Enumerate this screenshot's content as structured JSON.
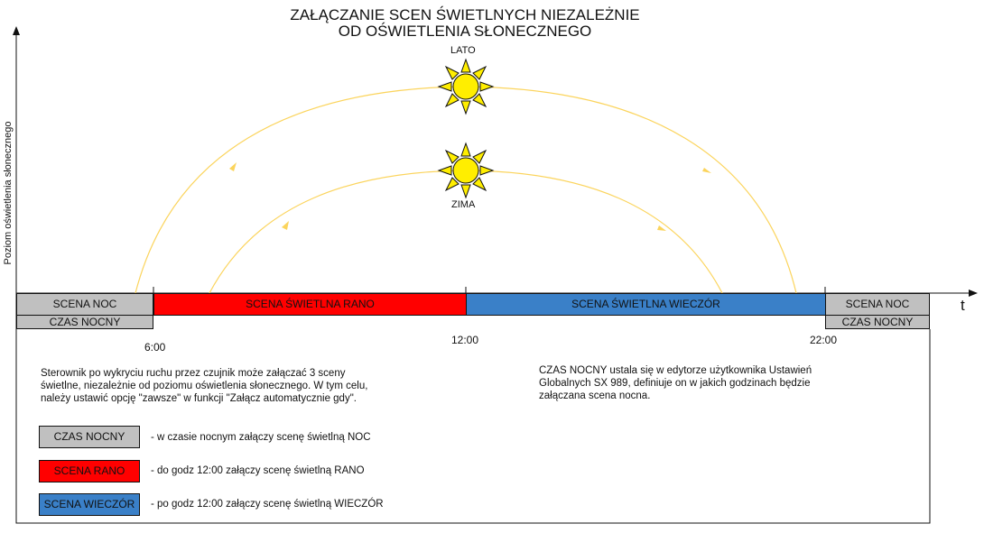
{
  "title": {
    "line1": "ZAŁĄCZANIE SCEN ŚWIETLNYCH NIEZALEŻNIE",
    "line2": "OD OŚWIETLENIA SŁONECZNEGO"
  },
  "axis": {
    "y_label": "Poziom oświetlenia słonecznego",
    "x_label": "t"
  },
  "suns": {
    "summer_label": "LATO",
    "winter_label": "ZIMA"
  },
  "times": [
    "6:00",
    "12:00",
    "22:00"
  ],
  "timeline": {
    "scene_night": "SCENA NOC",
    "night_time": "CZAS NOCNY",
    "scene_morning": "SCENA ŚWIETLNA RANO",
    "scene_evening": "SCENA ŚWIETLNA WIECZÓR"
  },
  "description_left": {
    "line1": "Sterownik po wykryciu ruchu przez czujnik może załączać 3 sceny",
    "line2": "świetlne, niezależnie od poziomu oświetlenia słonecznego. W tym celu,",
    "line3": "należy ustawić opcję \"zawsze\" w funkcji \"Załącz automatycznie gdy\"."
  },
  "description_right": {
    "line1": "CZAS NOCNY ustala się w edytorze użytkownika Ustawień",
    "line2": "Globalnych SX 989, definiuje on w jakich godzinach będzie",
    "line3": "załączana scena nocna."
  },
  "legend": [
    {
      "label": "CZAS NOCNY",
      "text": "- w czasie nocnym załączy scenę świetlną NOC"
    },
    {
      "label": "SCENA RANO",
      "text": "- do godz 12:00 załączy scenę świetlną RANO"
    },
    {
      "label": "SCENA WIECZÓR",
      "text": "- po godz 12:00 załączy scenę świetlną WIECZÓR"
    }
  ],
  "colors": {
    "night": "#c0c0c0",
    "morning": "#ff0000",
    "evening": "#3a80c8",
    "sun_path": "#fbd45c",
    "sun_fill": "#ffee00"
  }
}
